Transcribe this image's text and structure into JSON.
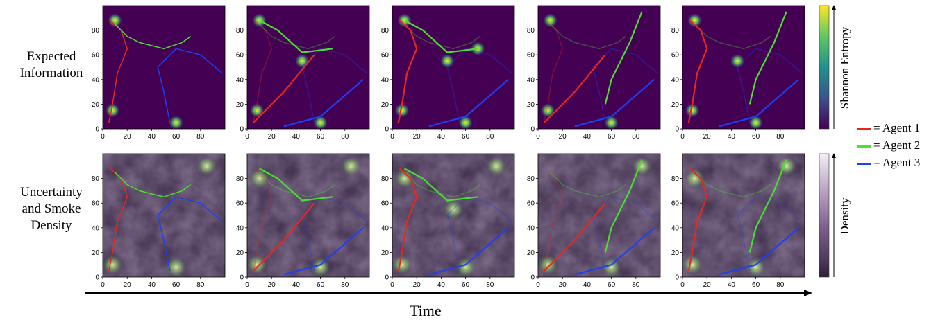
{
  "rows": [
    {
      "label_line1": "Expected",
      "label_line2": "Information",
      "label_line3": ""
    },
    {
      "label_line1": "Uncertainty",
      "label_line2": "and Smoke",
      "label_line3": "Density"
    }
  ],
  "colorbars": {
    "top_label": "Shannon Entropy",
    "bottom_label": "Density",
    "top_colors": [
      "#fde725",
      "#5ec962",
      "#21918c",
      "#3b528b",
      "#440154"
    ],
    "bottom_colors": [
      "#f4eef6",
      "#b9a3c2",
      "#7d5f8e",
      "#4f3b5f",
      "#2d1e3a"
    ]
  },
  "legend": [
    {
      "label": "= Agent 1",
      "color": "#e8281e"
    },
    {
      "label": "= Agent 2",
      "color": "#4be02f"
    },
    {
      "label": "= Agent 3",
      "color": "#1f3ff0"
    }
  ],
  "axis_ticks": {
    "x": [
      "0",
      "20",
      "40",
      "60",
      "80"
    ],
    "y": [
      "0",
      "20",
      "40",
      "60",
      "80"
    ]
  },
  "time_label": "Time",
  "colors": {
    "entropy_bg": "#440154",
    "density_bg": "#3a2a48",
    "agent1": "#e8281e",
    "agent2": "#4be02f",
    "agent3": "#1f3ff0"
  }
}
